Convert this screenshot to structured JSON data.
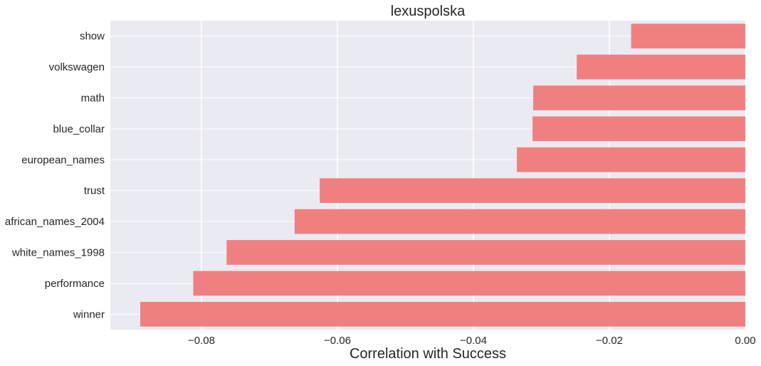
{
  "chart_data": {
    "type": "bar",
    "orientation": "horizontal",
    "title": "lexuspolska",
    "xlabel": "Correlation with Success",
    "ylabel": "",
    "categories": [
      "show",
      "volkswagen",
      "math",
      "blue_collar",
      "european_names",
      "trust",
      "african_names_2004",
      "white_names_1998",
      "performance",
      "winner"
    ],
    "values": [
      -0.0168,
      -0.0248,
      -0.0312,
      -0.0313,
      -0.0336,
      -0.0626,
      -0.0663,
      -0.0763,
      -0.0812,
      -0.089
    ],
    "xlim": [
      -0.0934,
      0.0
    ],
    "xticks": [
      -0.08,
      -0.06,
      -0.04,
      -0.02,
      0.0
    ],
    "xtick_labels": [
      "−0.08",
      "−0.06",
      "−0.04",
      "−0.02",
      "0.00"
    ],
    "grid": true,
    "colors": {
      "bar": "#F08080",
      "plot_background": "#EAEAF2",
      "grid": "#FFFFFF",
      "text": "#262626"
    }
  }
}
